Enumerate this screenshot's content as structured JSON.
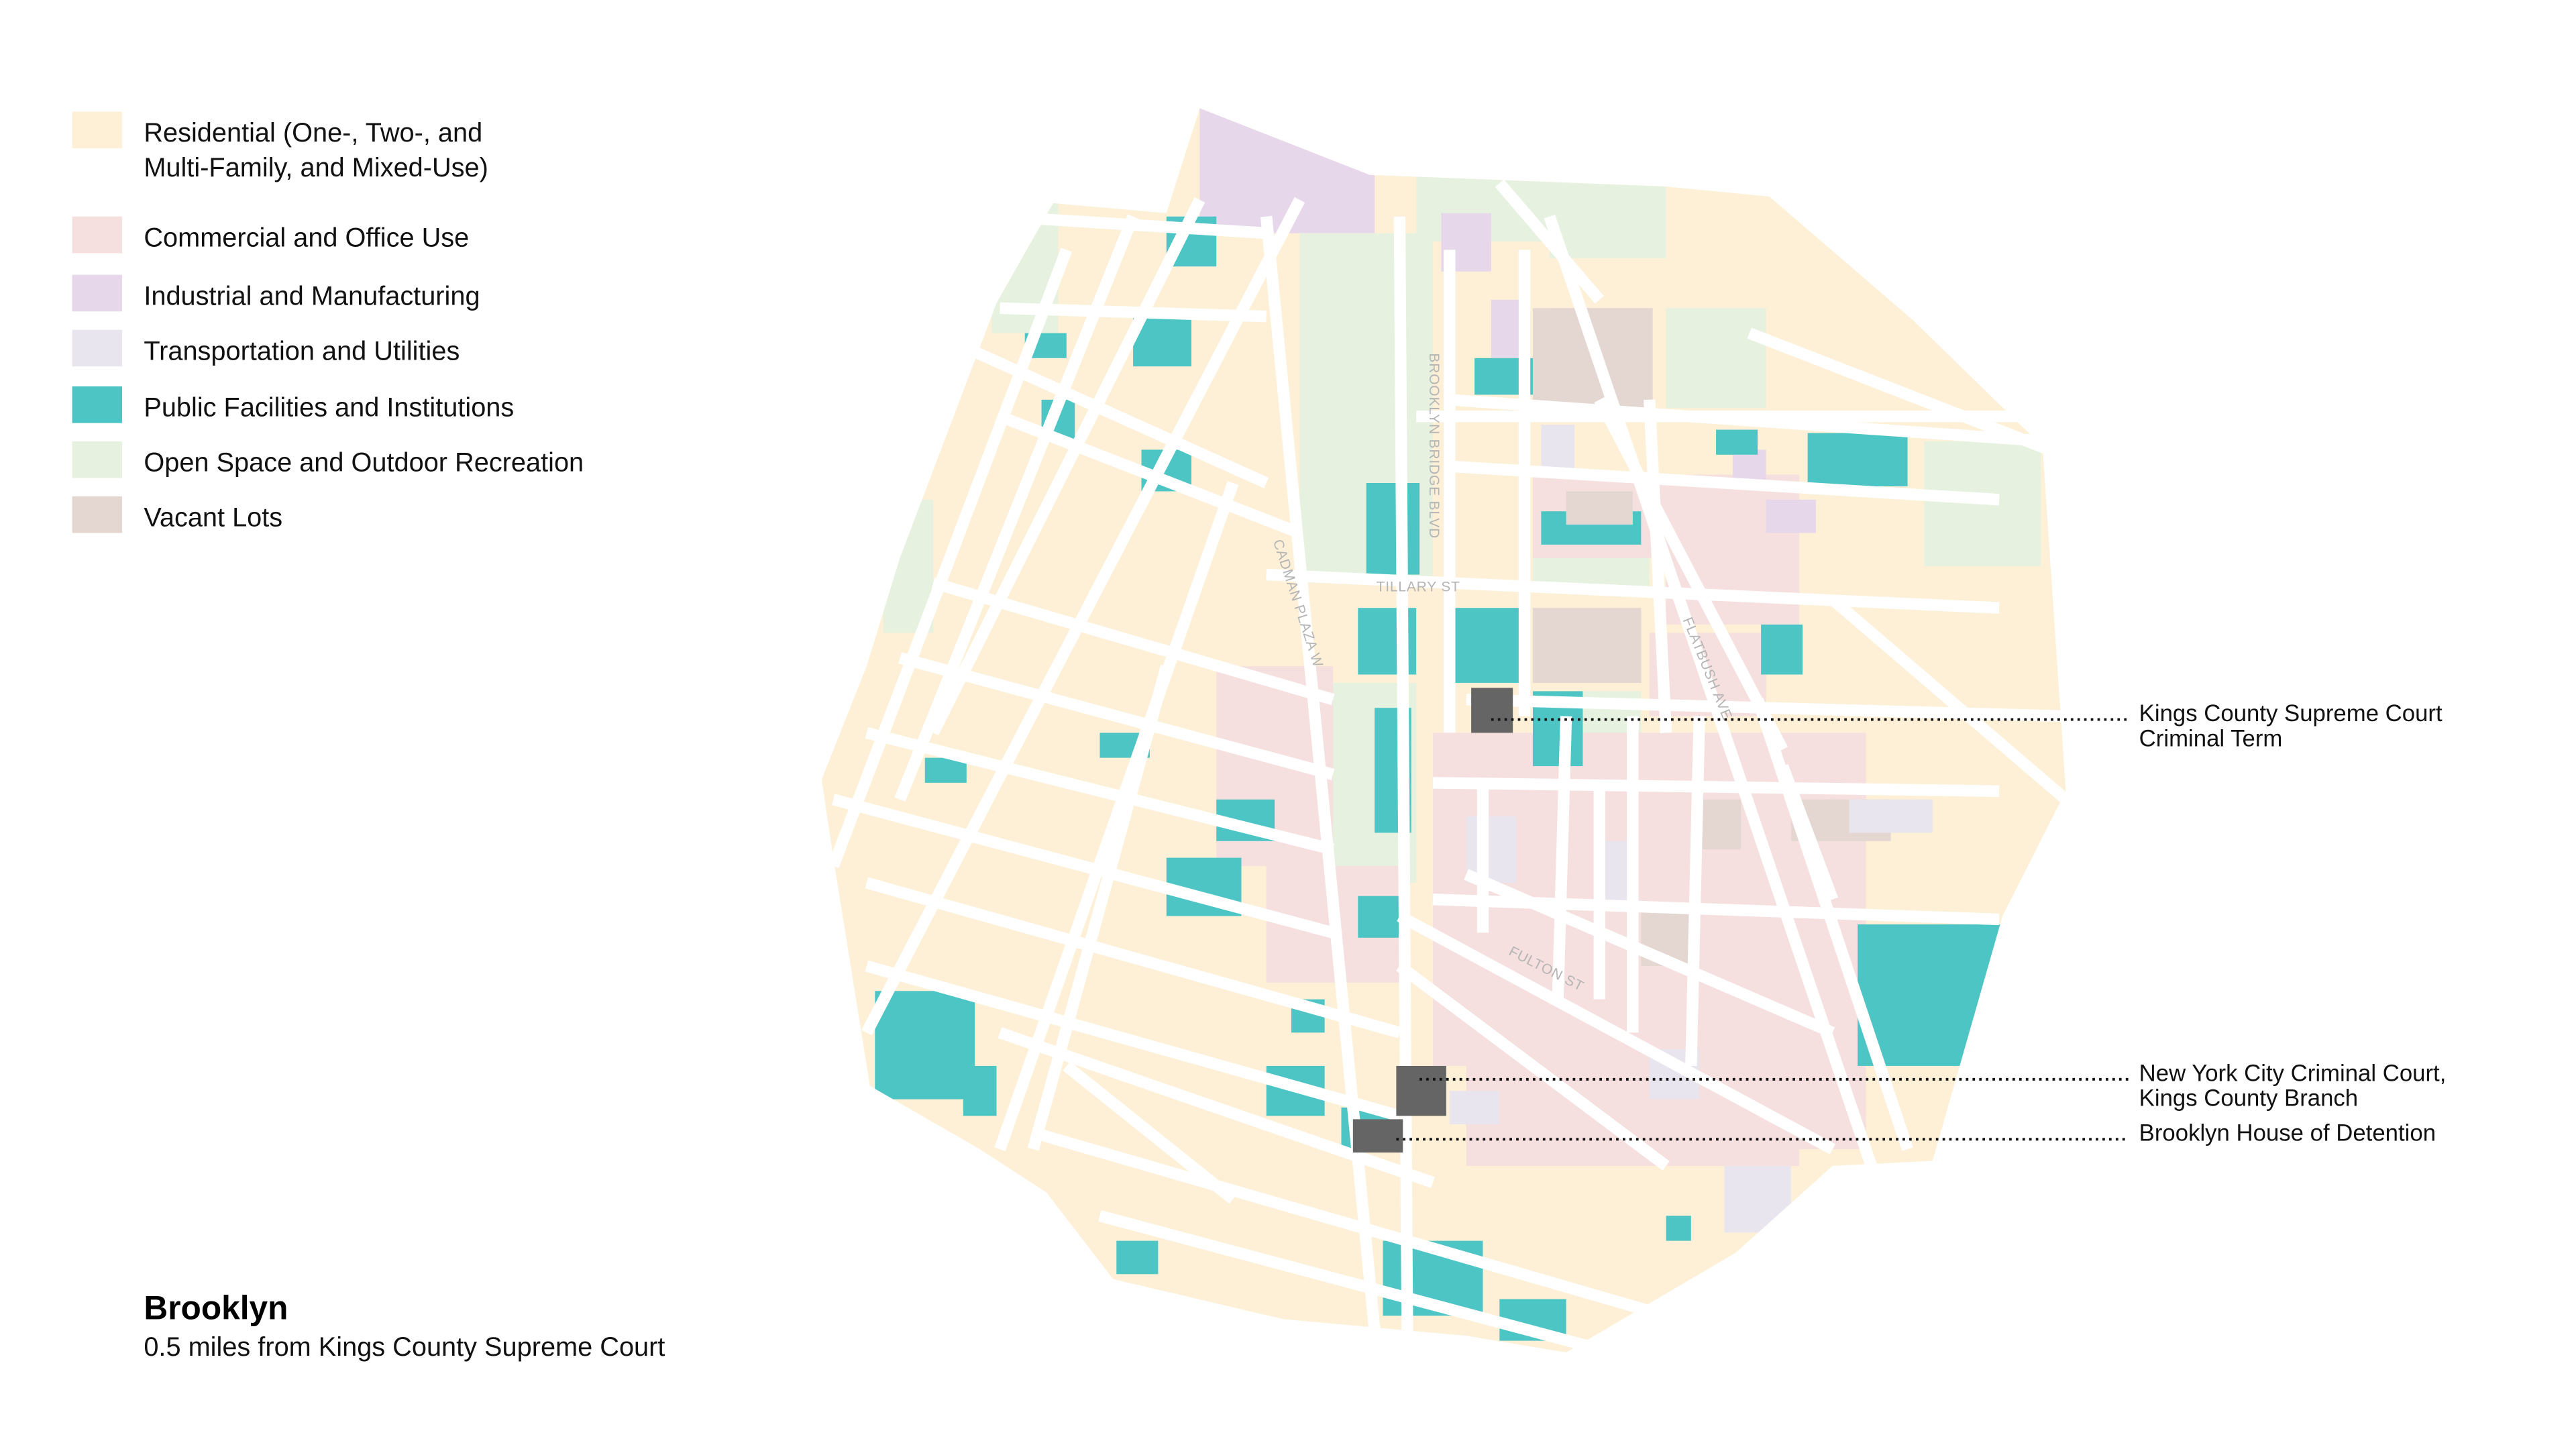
{
  "legend": {
    "items": [
      {
        "lines": [
          "Residential (One-, Two-, and",
          "Multi-Family, and Mixed-Use)"
        ],
        "color": "#fdf0d6"
      },
      {
        "lines": [
          "Commercial and Office Use"
        ],
        "color": "#f6dfdf"
      },
      {
        "lines": [
          "Industrial and Manufacturing"
        ],
        "color": "#e7d7eb"
      },
      {
        "lines": [
          "Transportation and Utilities"
        ],
        "color": "#e9e5ee"
      },
      {
        "lines": [
          "Public Facilities and Institutions"
        ],
        "color": "#4ec5c5"
      },
      {
        "lines": [
          "Open Space and Outdoor Recreation"
        ],
        "color": "#e6f1df"
      },
      {
        "lines": [
          "Vacant Lots"
        ],
        "color": "#e4d7d2"
      }
    ]
  },
  "title": "Brooklyn",
  "subtitle": "0.5 miles from Kings County Supreme Court",
  "streets": [
    "BROOKLYN BRIDGE BLVD",
    "TILLARY ST",
    "CADMAN PLAZA W",
    "FLATBUSH AVE",
    "FULTON ST"
  ],
  "annotations": [
    {
      "lines": [
        "Kings County Supreme Court",
        "Criminal Term"
      ]
    },
    {
      "lines": [
        "New York City Criminal Court,",
        "Kings County Branch"
      ]
    },
    {
      "lines": [
        "Brooklyn House of Detention"
      ]
    }
  ]
}
